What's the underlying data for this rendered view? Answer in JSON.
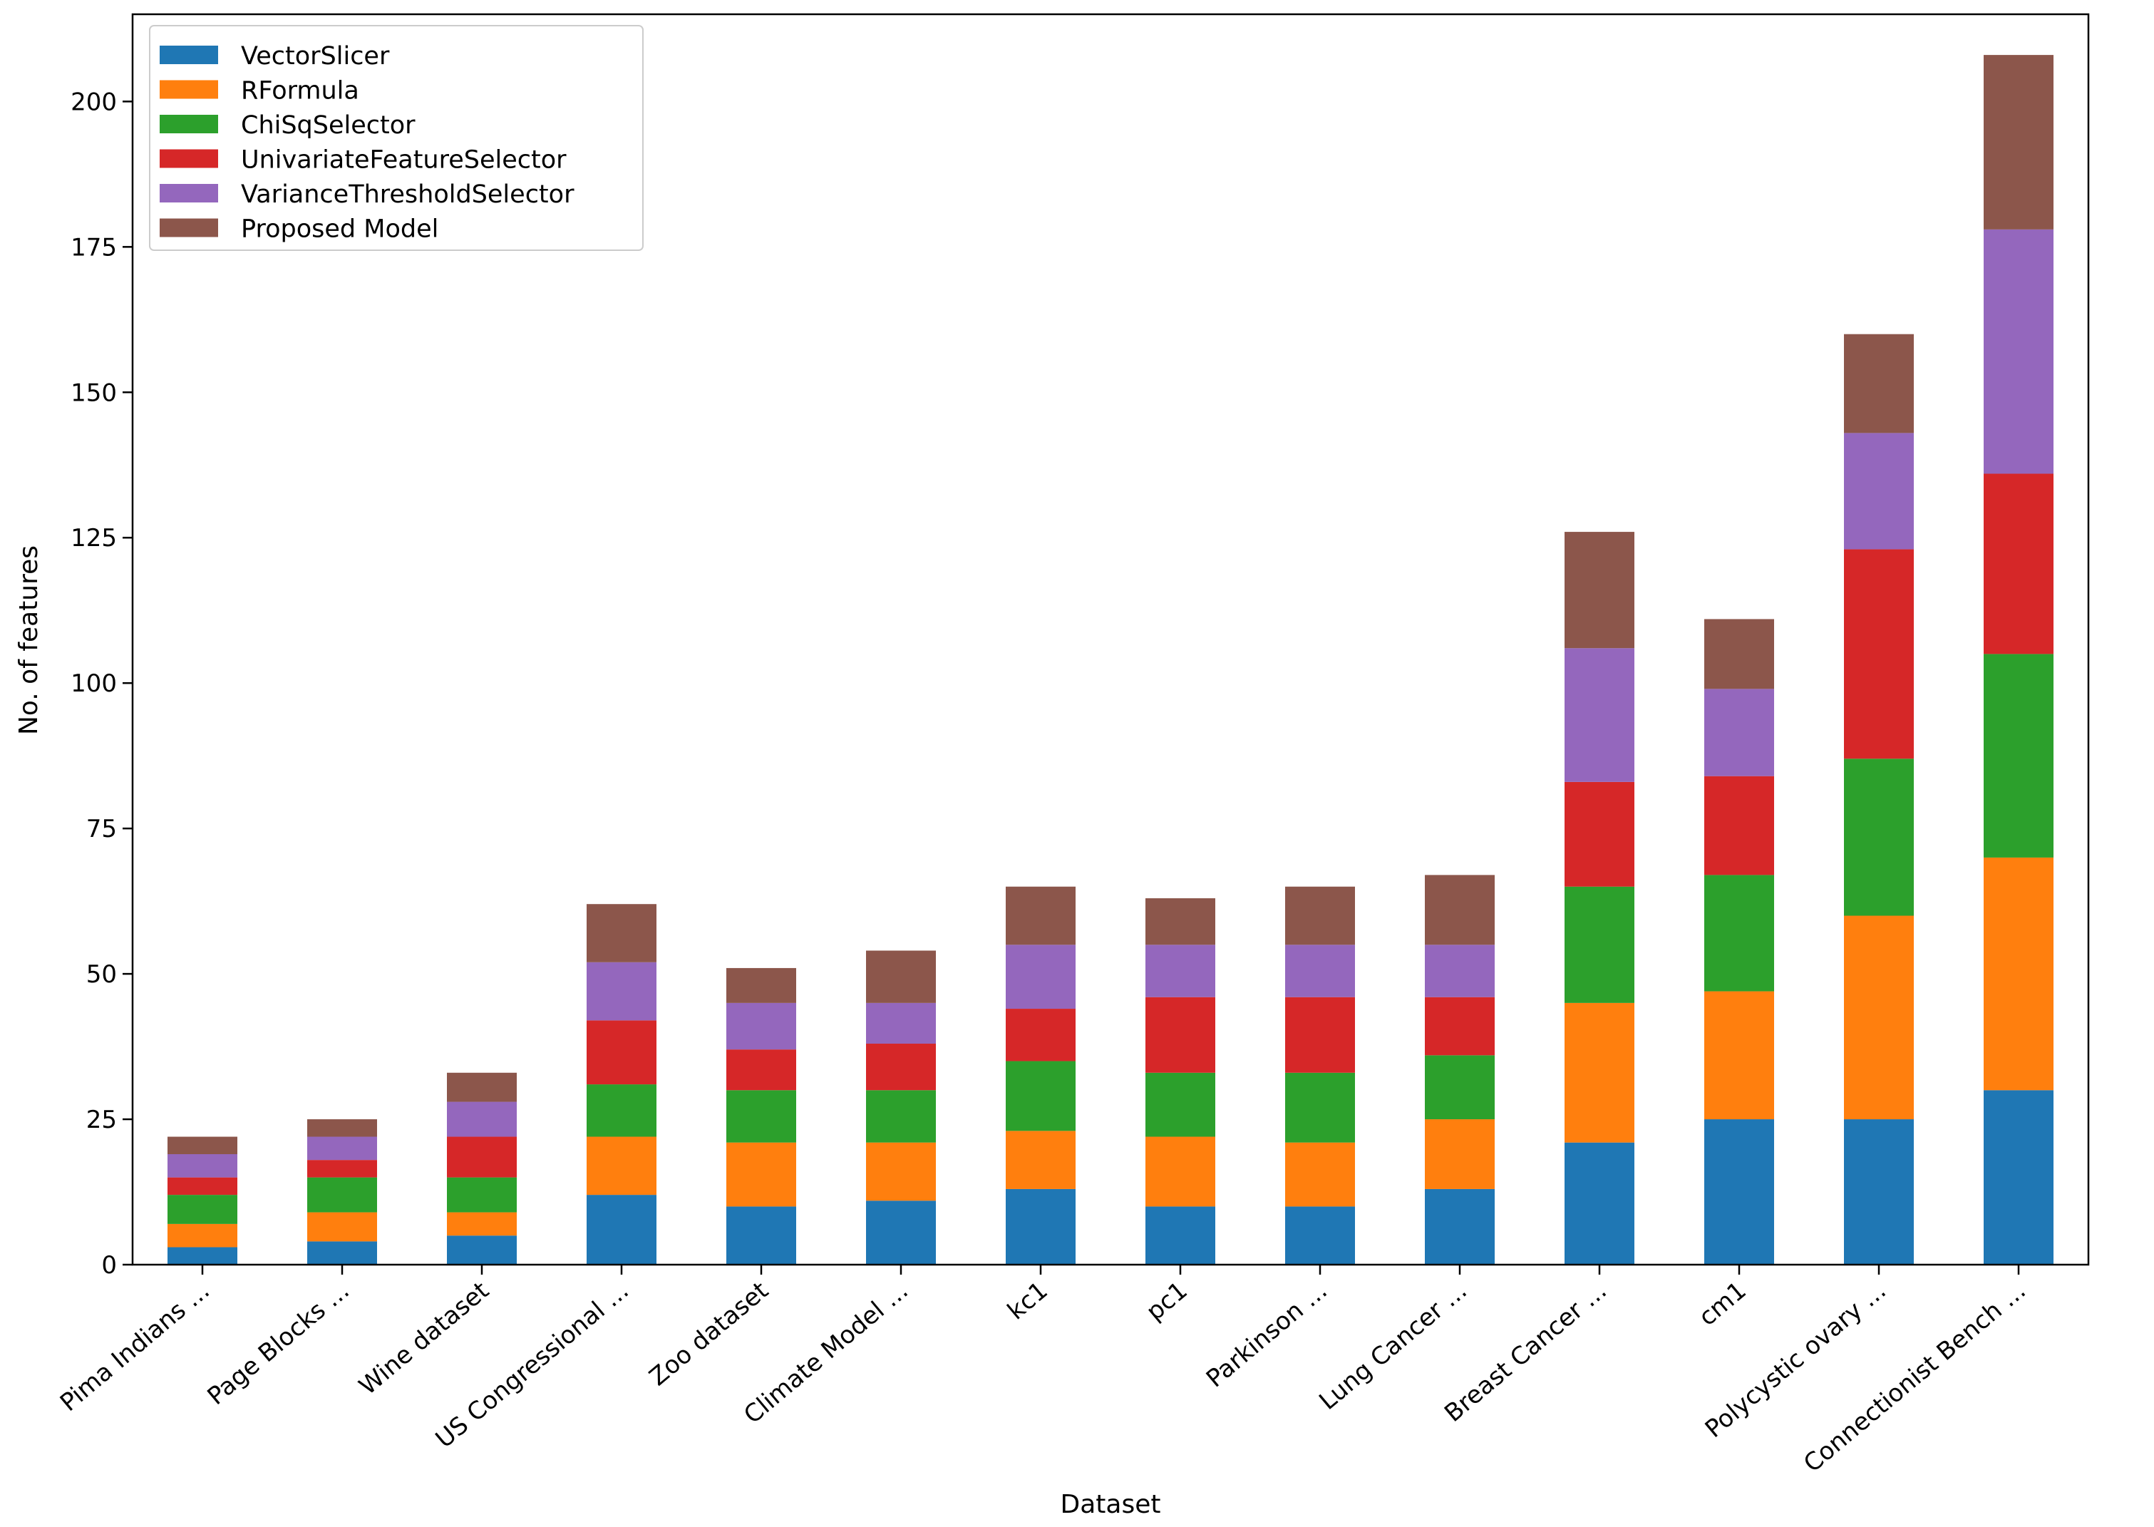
{
  "chart_data": {
    "type": "bar",
    "stacked": true,
    "title": "",
    "xlabel": "Dataset",
    "ylabel": "No. of features",
    "ylim": [
      0,
      215
    ],
    "yticks": [
      0,
      25,
      50,
      75,
      100,
      125,
      150,
      175,
      200
    ],
    "legend_position": "top-left",
    "categories": [
      "Pima Indians ...",
      "Page Blocks ...",
      "Wine dataset",
      "US Congressional ...",
      "Zoo dataset",
      "Climate Model ...",
      "kc1",
      "pc1",
      "Parkinson ...",
      "Lung Cancer ...",
      "Breast Cancer ...",
      "cm1",
      "Polycystic ovary ...",
      "Connectionist Bench ..."
    ],
    "series": [
      {
        "name": "VectorSlicer",
        "color": "#1f77b4",
        "values": [
          3,
          4,
          5,
          12,
          10,
          11,
          13,
          10,
          10,
          13,
          21,
          25,
          25,
          30
        ]
      },
      {
        "name": "RFormula",
        "color": "#ff7f0e",
        "values": [
          4,
          5,
          4,
          10,
          11,
          10,
          10,
          12,
          11,
          12,
          24,
          22,
          35,
          40
        ]
      },
      {
        "name": "ChiSqSelector",
        "color": "#2ca02c",
        "values": [
          5,
          6,
          6,
          9,
          9,
          9,
          12,
          11,
          12,
          11,
          20,
          20,
          27,
          35
        ]
      },
      {
        "name": "UnivariateFeatureSelector",
        "color": "#d62728",
        "values": [
          3,
          3,
          7,
          11,
          7,
          8,
          9,
          13,
          13,
          10,
          18,
          17,
          36,
          31
        ]
      },
      {
        "name": "VarianceThresholdSelector",
        "color": "#9467bd",
        "values": [
          4,
          4,
          6,
          10,
          8,
          7,
          11,
          9,
          9,
          9,
          23,
          15,
          20,
          42
        ]
      },
      {
        "name": "Proposed Model",
        "color": "#8c564b",
        "values": [
          3,
          3,
          5,
          10,
          6,
          9,
          10,
          8,
          10,
          12,
          20,
          12,
          17,
          30
        ]
      }
    ]
  }
}
